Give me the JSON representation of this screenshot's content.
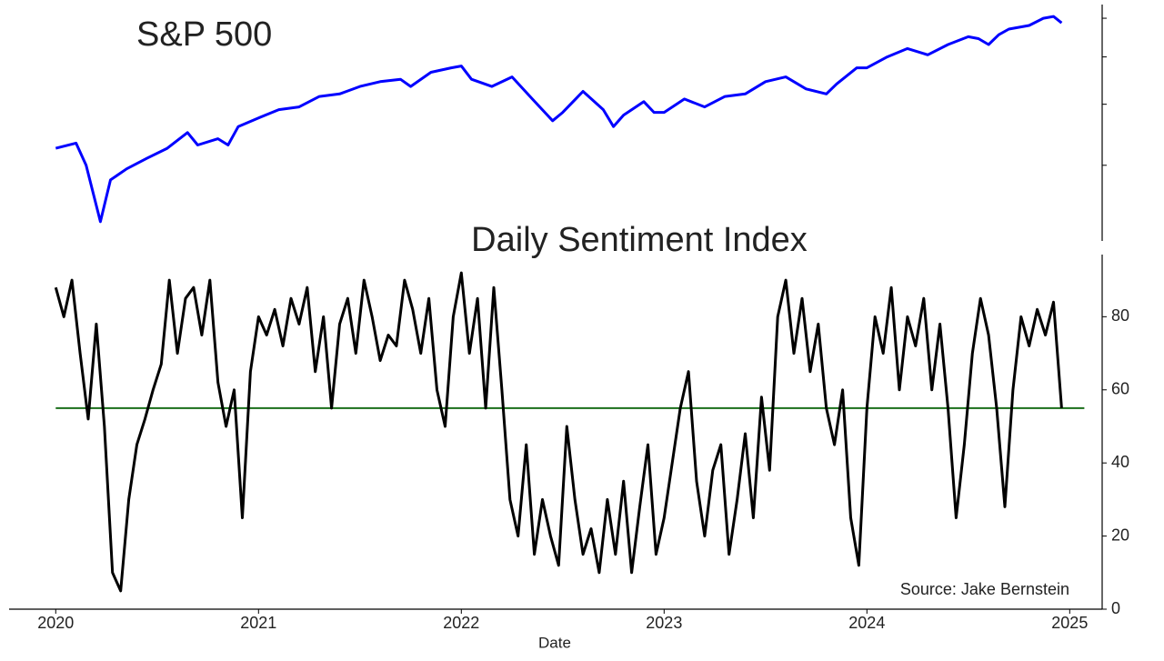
{
  "chart_data": [
    {
      "type": "line",
      "title": "S&P 500",
      "color": "#0000ff",
      "log_scale": true,
      "x": [
        2020.0,
        2020.1,
        2020.15,
        2020.22,
        2020.27,
        2020.35,
        2020.45,
        2020.55,
        2020.65,
        2020.7,
        2020.8,
        2020.85,
        2020.9,
        2021.0,
        2021.1,
        2021.2,
        2021.3,
        2021.4,
        2021.5,
        2021.6,
        2021.7,
        2021.75,
        2021.85,
        2021.95,
        2022.0,
        2022.05,
        2022.15,
        2022.25,
        2022.35,
        2022.45,
        2022.5,
        2022.6,
        2022.7,
        2022.75,
        2022.8,
        2022.9,
        2022.95,
        2023.0,
        2023.1,
        2023.2,
        2023.3,
        2023.4,
        2023.5,
        2023.6,
        2023.7,
        2023.8,
        2023.85,
        2023.95,
        2024.0,
        2024.1,
        2024.2,
        2024.3,
        2024.4,
        2024.5,
        2024.55,
        2024.6,
        2024.65,
        2024.7,
        2024.8,
        2024.87,
        2024.92,
        2024.96
      ],
      "values": [
        3250,
        3330,
        3000,
        2300,
        2800,
        2950,
        3100,
        3250,
        3500,
        3300,
        3400,
        3300,
        3600,
        3750,
        3900,
        3950,
        4150,
        4200,
        4350,
        4450,
        4500,
        4350,
        4650,
        4750,
        4790,
        4500,
        4350,
        4550,
        4100,
        3700,
        3850,
        4250,
        3900,
        3600,
        3800,
        4050,
        3850,
        3850,
        4100,
        3950,
        4150,
        4200,
        4450,
        4550,
        4300,
        4200,
        4400,
        4750,
        4750,
        5000,
        5200,
        5050,
        5300,
        5500,
        5450,
        5300,
        5550,
        5700,
        5800,
        6000,
        6050,
        5870
      ],
      "xlim": [
        2019.77,
        2025.16
      ],
      "ylim": [
        2100,
        6400
      ],
      "yticks": [
        3000,
        4000,
        5000,
        6000
      ]
    },
    {
      "type": "line",
      "title": "Daily Sentiment Index",
      "color": "#000000",
      "xlabel": "Date",
      "annotation": "Source: Jake Bernstein",
      "reference_line": {
        "value": 55,
        "color": "#1a6e1a"
      },
      "x": [
        2020.0,
        2020.04,
        2020.08,
        2020.12,
        2020.16,
        2020.2,
        2020.24,
        2020.28,
        2020.32,
        2020.36,
        2020.4,
        2020.44,
        2020.48,
        2020.52,
        2020.56,
        2020.6,
        2020.64,
        2020.68,
        2020.72,
        2020.76,
        2020.8,
        2020.84,
        2020.88,
        2020.92,
        2020.96,
        2021.0,
        2021.04,
        2021.08,
        2021.12,
        2021.16,
        2021.2,
        2021.24,
        2021.28,
        2021.32,
        2021.36,
        2021.4,
        2021.44,
        2021.48,
        2021.52,
        2021.56,
        2021.6,
        2021.64,
        2021.68,
        2021.72,
        2021.76,
        2021.8,
        2021.84,
        2021.88,
        2021.92,
        2021.96,
        2022.0,
        2022.04,
        2022.08,
        2022.12,
        2022.16,
        2022.2,
        2022.24,
        2022.28,
        2022.32,
        2022.36,
        2022.4,
        2022.44,
        2022.48,
        2022.52,
        2022.56,
        2022.6,
        2022.64,
        2022.68,
        2022.72,
        2022.76,
        2022.8,
        2022.84,
        2022.88,
        2022.92,
        2022.96,
        2023.0,
        2023.04,
        2023.08,
        2023.12,
        2023.16,
        2023.2,
        2023.24,
        2023.28,
        2023.32,
        2023.36,
        2023.4,
        2023.44,
        2023.48,
        2023.52,
        2023.56,
        2023.6,
        2023.64,
        2023.68,
        2023.72,
        2023.76,
        2023.8,
        2023.84,
        2023.88,
        2023.92,
        2023.96,
        2024.0,
        2024.04,
        2024.08,
        2024.12,
        2024.16,
        2024.2,
        2024.24,
        2024.28,
        2024.32,
        2024.36,
        2024.4,
        2024.44,
        2024.48,
        2024.52,
        2024.56,
        2024.6,
        2024.64,
        2024.68,
        2024.72,
        2024.76,
        2024.8,
        2024.84,
        2024.88,
        2024.92,
        2024.96
      ],
      "values": [
        88,
        80,
        90,
        70,
        52,
        78,
        50,
        10,
        5,
        30,
        45,
        52,
        60,
        67,
        90,
        70,
        85,
        88,
        75,
        90,
        62,
        50,
        60,
        25,
        65,
        80,
        75,
        82,
        72,
        85,
        78,
        88,
        65,
        80,
        55,
        78,
        85,
        70,
        90,
        80,
        68,
        75,
        72,
        90,
        82,
        70,
        85,
        60,
        50,
        80,
        92,
        70,
        85,
        55,
        88,
        60,
        30,
        20,
        45,
        15,
        30,
        20,
        12,
        50,
        30,
        15,
        22,
        10,
        30,
        15,
        35,
        10,
        28,
        45,
        15,
        25,
        40,
        55,
        65,
        35,
        20,
        38,
        45,
        15,
        30,
        48,
        25,
        58,
        38,
        80,
        90,
        70,
        85,
        65,
        78,
        55,
        45,
        60,
        25,
        12,
        55,
        80,
        70,
        88,
        60,
        80,
        72,
        85,
        60,
        78,
        55,
        25,
        45,
        70,
        85,
        75,
        55,
        28,
        60,
        80,
        72,
        82,
        75,
        84,
        55
      ],
      "xlim": [
        2019.77,
        2025.16
      ],
      "xticks": [
        2020,
        2021,
        2022,
        2023,
        2024,
        2025
      ],
      "ylim": [
        0,
        97
      ],
      "yticks": [
        0,
        20,
        40,
        60,
        80
      ]
    }
  ]
}
